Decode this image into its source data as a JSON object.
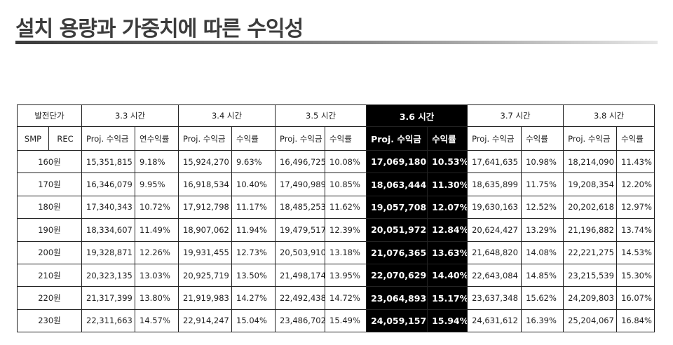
{
  "title": "설치 용량과 가중치에 따른 수익성",
  "table": {
    "group_header": "발전단가",
    "sub_smp": "SMP",
    "sub_rec": "REC",
    "hours": [
      "3.3 시간",
      "3.4 시간",
      "3.5 시간",
      "3.6 시간",
      "3.7 시간",
      "3.8 시간"
    ],
    "sub_headers": [
      [
        "Proj. 수익금",
        "연수익률"
      ],
      [
        "Proj. 수익금",
        "수익률"
      ],
      [
        "Proj. 수익금",
        "수익률"
      ],
      [
        "Proj. 수익금",
        "수익률"
      ],
      [
        "Proj. 수익금",
        "수익률"
      ],
      [
        "Proj. 수익금",
        "수익률"
      ]
    ],
    "highlight_color": "#000000",
    "rows": [
      {
        "smp": "160원",
        "cells": [
          "15,351,815",
          "9.18%",
          "15,924,270",
          "9.63%",
          "16,496,725",
          "10.08%",
          "17,069,180",
          "10.53%",
          "17,641,635",
          "10.98%",
          "18,214,090",
          "11.43%"
        ]
      },
      {
        "smp": "170원",
        "cells": [
          "16,346,079",
          "9.95%",
          "16,918,534",
          "10.40%",
          "17,490,989",
          "10.85%",
          "18,063,444",
          "11.30%",
          "18,635,899",
          "11.75%",
          "19,208,354",
          "12.20%"
        ]
      },
      {
        "smp": "180원",
        "cells": [
          "17,340,343",
          "10.72%",
          "17,912,798",
          "11.17%",
          "18,485,253",
          "11.62%",
          "19,057,708",
          "12.07%",
          "19,630,163",
          "12.52%",
          "20,202,618",
          "12.97%"
        ]
      },
      {
        "smp": "190원",
        "cells": [
          "18,334,607",
          "11.49%",
          "18,907,062",
          "11.94%",
          "19,479,517",
          "12.39%",
          "20,051,972",
          "12.84%",
          "20,624,427",
          "13.29%",
          "21,196,882",
          "13.74%"
        ]
      },
      {
        "smp": "200원",
        "cells": [
          "19,328,871",
          "12.26%",
          "19,931,455",
          "12.73%",
          "20,503,910",
          "13.18%",
          "21,076,365",
          "13.63%",
          "21,648,820",
          "14.08%",
          "22,221,275",
          "14.53%"
        ]
      },
      {
        "smp": "210원",
        "cells": [
          "20,323,135",
          "13.03%",
          "20,925,719",
          "13.50%",
          "21,498,174",
          "13.95%",
          "22,070,629",
          "14.40%",
          "22,643,084",
          "14.85%",
          "23,215,539",
          "15.30%"
        ]
      },
      {
        "smp": "220원",
        "cells": [
          "21,317,399",
          "13.80%",
          "21,919,983",
          "14.27%",
          "22,492,438",
          "14.72%",
          "23,064,893",
          "15.17%",
          "23,637,348",
          "15.62%",
          "24,209,803",
          "16.07%"
        ]
      },
      {
        "smp": "230원",
        "cells": [
          "22,311,663",
          "14.57%",
          "22,914,247",
          "15.04%",
          "23,486,702",
          "15.49%",
          "24,059,157",
          "15.94%",
          "24,631,612",
          "16.39%",
          "25,204,067",
          "16.84%"
        ]
      }
    ]
  }
}
